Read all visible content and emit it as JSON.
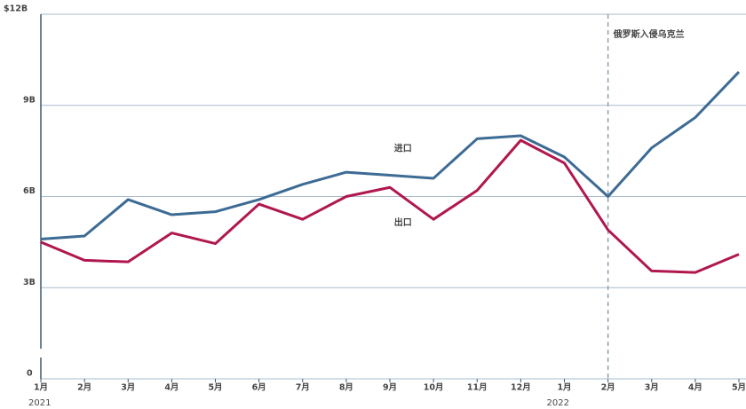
{
  "chart_data": {
    "type": "line",
    "categories": [
      "1月",
      "2月",
      "3月",
      "4月",
      "5月",
      "6月",
      "7月",
      "8月",
      "9月",
      "10月",
      "11月",
      "12月",
      "1月",
      "2月",
      "3月",
      "4月",
      "5月"
    ],
    "category_years": [
      "2021",
      null,
      null,
      null,
      null,
      null,
      null,
      null,
      null,
      null,
      null,
      null,
      "2022",
      null,
      null,
      null,
      null
    ],
    "series": [
      {
        "name": "进口",
        "color": "#3d6b94",
        "values": [
          4.6,
          4.7,
          5.9,
          5.4,
          5.5,
          5.9,
          6.4,
          6.8,
          6.7,
          6.6,
          7.9,
          8.0,
          7.3,
          6.0,
          7.6,
          8.6,
          10.1
        ]
      },
      {
        "name": "出口",
        "color": "#b0174f",
        "values": [
          4.5,
          3.9,
          3.85,
          4.8,
          4.45,
          5.75,
          5.25,
          6.0,
          6.3,
          5.25,
          6.2,
          7.85,
          7.1,
          4.9,
          3.55,
          3.5,
          4.1
        ]
      }
    ],
    "ylim": [
      0,
      12
    ],
    "yticks": [
      0,
      {
        "value": 3,
        "label": "3B"
      },
      {
        "value": 6,
        "label": "6B"
      },
      {
        "value": 9,
        "label": "9B"
      },
      {
        "value": 12,
        "label": "$12B"
      }
    ],
    "grid": true,
    "annotation": {
      "label": "俄罗斯入侵乌克兰",
      "category_index": 13
    }
  }
}
